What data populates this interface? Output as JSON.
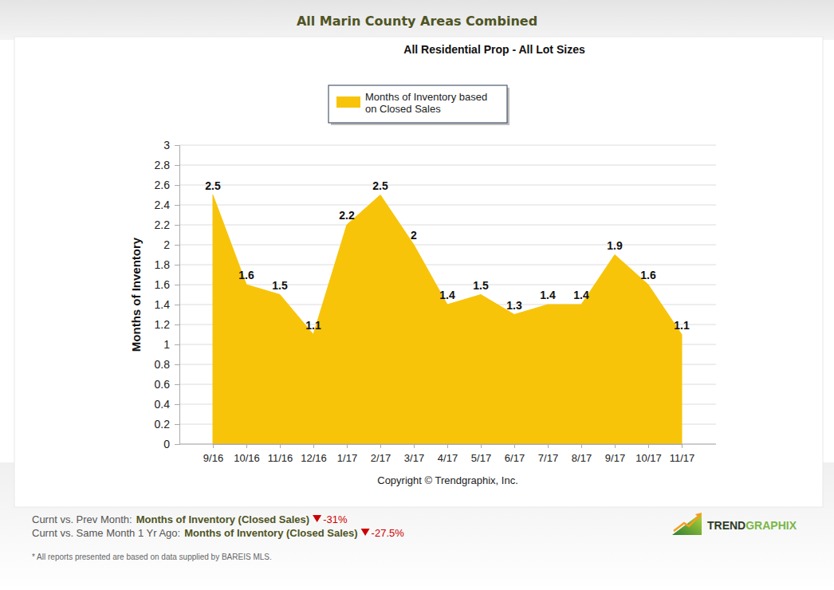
{
  "chart_data": {
    "type": "area",
    "title": "All Marin County Areas Combined",
    "subtitle": "All Residential Prop - All Lot Sizes",
    "y_label": "Months of Inventory",
    "annotations": [
      "Copyright © Trendgraphix, Inc."
    ],
    "categories": [
      "9/16",
      "10/16",
      "11/16",
      "12/16",
      "1/17",
      "2/17",
      "3/17",
      "4/17",
      "5/17",
      "6/17",
      "7/17",
      "8/17",
      "9/17",
      "10/17",
      "11/17"
    ],
    "series": [
      {
        "name": "Months of Inventory based on Closed Sales",
        "color": "#f7c40a",
        "values": [
          2.5,
          1.6,
          1.5,
          1.1,
          2.2,
          2.5,
          2,
          1.4,
          1.5,
          1.3,
          1.4,
          1.4,
          1.9,
          1.6,
          1.1
        ]
      }
    ],
    "ylim": [
      0,
      3
    ],
    "yticks": [
      0,
      0.2,
      0.4,
      0.6,
      0.8,
      1,
      1.2,
      1.4,
      1.6,
      1.8,
      2,
      2.2,
      2.4,
      2.6,
      2.8,
      3
    ],
    "grid": true,
    "legend": "top",
    "data_labels": true
  },
  "footer": {
    "comparisons": [
      {
        "label": "Curnt vs. Prev Month:",
        "metric": "Months of Inventory (Closed Sales)",
        "change": "-31%"
      },
      {
        "label": "Curnt vs. Same Month 1 Yr Ago:",
        "metric": "Months of Inventory (Closed Sales)",
        "change": "-27.5%"
      }
    ],
    "logo": [
      "TREND",
      "GRAPHIX"
    ],
    "note": "* All reports presented are based on data supplied by BAREIS MLS."
  }
}
